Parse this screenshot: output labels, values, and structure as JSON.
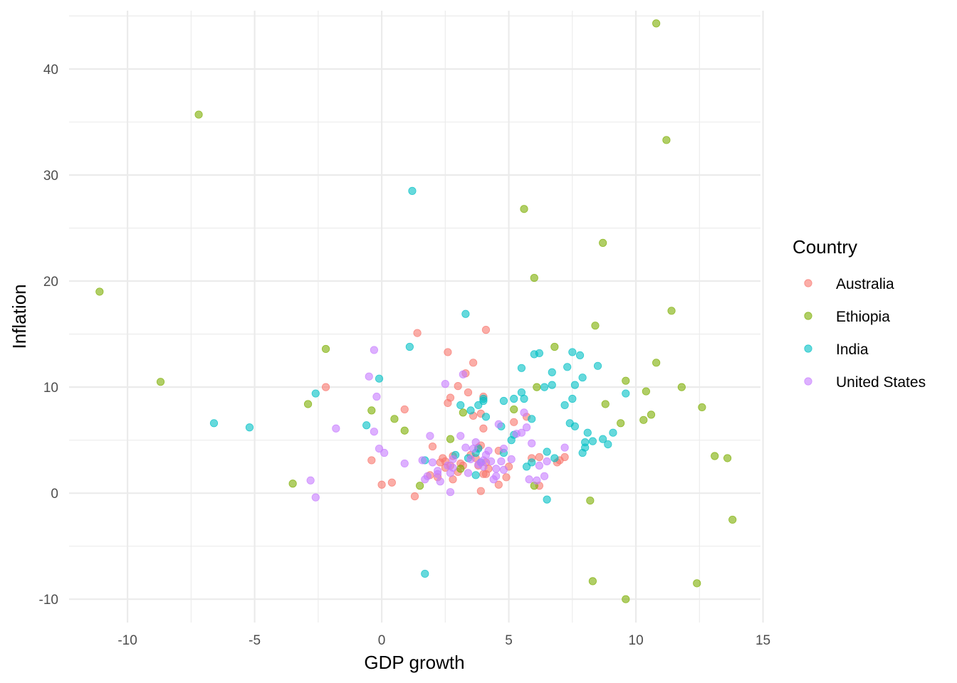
{
  "chart_data": {
    "type": "scatter",
    "title": "",
    "xlabel": "GDP growth",
    "ylabel": "Inflation",
    "xlim": [
      -12.3,
      14.9
    ],
    "ylim": [
      -12.2,
      45.5
    ],
    "xticks": [
      -10,
      -5,
      0,
      5,
      10,
      15
    ],
    "yticks": [
      -10,
      0,
      10,
      20,
      30,
      40
    ],
    "grid": true,
    "legend": {
      "title": "Country",
      "placement": "right"
    },
    "series": [
      {
        "name": "Australia",
        "color": "#F8766D",
        "points": [
          [
            -2.2,
            10.0
          ],
          [
            -0.4,
            3.1
          ],
          [
            0.0,
            0.8
          ],
          [
            0.4,
            1.0
          ],
          [
            0.9,
            7.9
          ],
          [
            1.3,
            -0.3
          ],
          [
            1.4,
            15.1
          ],
          [
            1.9,
            1.7
          ],
          [
            2.0,
            4.4
          ],
          [
            2.2,
            1.5
          ],
          [
            2.3,
            2.9
          ],
          [
            2.4,
            3.3
          ],
          [
            2.5,
            2.4
          ],
          [
            2.6,
            8.5
          ],
          [
            2.6,
            13.3
          ],
          [
            2.7,
            9.0
          ],
          [
            2.7,
            2.6
          ],
          [
            2.8,
            1.3
          ],
          [
            2.8,
            3.5
          ],
          [
            3.0,
            10.1
          ],
          [
            3.0,
            2.0
          ],
          [
            3.2,
            2.6
          ],
          [
            3.3,
            11.3
          ],
          [
            3.4,
            9.5
          ],
          [
            3.5,
            3.6
          ],
          [
            3.6,
            12.3
          ],
          [
            3.6,
            7.3
          ],
          [
            3.7,
            3.3
          ],
          [
            3.8,
            2.6
          ],
          [
            3.8,
            4.3
          ],
          [
            3.9,
            7.5
          ],
          [
            3.9,
            4.5
          ],
          [
            3.9,
            0.2
          ],
          [
            4.0,
            6.1
          ],
          [
            4.0,
            9.1
          ],
          [
            4.0,
            1.8
          ],
          [
            4.1,
            15.4
          ],
          [
            4.1,
            1.8
          ],
          [
            4.1,
            2.9
          ],
          [
            4.2,
            2.3
          ],
          [
            4.6,
            4.0
          ],
          [
            4.6,
            0.8
          ],
          [
            4.9,
            1.5
          ],
          [
            5.0,
            2.5
          ],
          [
            5.2,
            6.7
          ],
          [
            5.7,
            7.2
          ],
          [
            5.9,
            3.3
          ],
          [
            6.2,
            3.4
          ],
          [
            6.2,
            0.7
          ],
          [
            6.9,
            2.9
          ],
          [
            7.2,
            3.4
          ],
          [
            7.0,
            3.1
          ],
          [
            2.5,
            3.0
          ],
          [
            3.1,
            2.8
          ]
        ]
      },
      {
        "name": "Ethiopia",
        "color": "#7CAE00",
        "points": [
          [
            -11.1,
            19.0
          ],
          [
            -8.7,
            10.5
          ],
          [
            -7.2,
            35.7
          ],
          [
            -3.5,
            0.9
          ],
          [
            -2.9,
            8.4
          ],
          [
            -2.2,
            13.6
          ],
          [
            -0.4,
            7.8
          ],
          [
            0.5,
            7.0
          ],
          [
            0.9,
            5.9
          ],
          [
            1.5,
            0.7
          ],
          [
            2.7,
            5.1
          ],
          [
            3.1,
            2.3
          ],
          [
            3.2,
            7.6
          ],
          [
            5.2,
            7.9
          ],
          [
            5.6,
            26.8
          ],
          [
            6.0,
            20.3
          ],
          [
            6.0,
            0.7
          ],
          [
            6.1,
            10.0
          ],
          [
            6.8,
            13.8
          ],
          [
            8.2,
            -0.7
          ],
          [
            8.3,
            -8.3
          ],
          [
            8.4,
            15.8
          ],
          [
            8.7,
            23.6
          ],
          [
            8.8,
            8.4
          ],
          [
            9.4,
            6.6
          ],
          [
            9.6,
            10.6
          ],
          [
            9.6,
            -10.0
          ],
          [
            10.3,
            6.9
          ],
          [
            10.4,
            9.6
          ],
          [
            10.6,
            7.4
          ],
          [
            10.8,
            12.3
          ],
          [
            10.8,
            44.3
          ],
          [
            11.2,
            33.3
          ],
          [
            11.4,
            17.2
          ],
          [
            11.8,
            10.0
          ],
          [
            12.4,
            -8.5
          ],
          [
            12.6,
            8.1
          ],
          [
            13.1,
            3.5
          ],
          [
            13.6,
            3.3
          ],
          [
            13.8,
            -2.5
          ]
        ]
      },
      {
        "name": "India",
        "color": "#00BFC4",
        "points": [
          [
            -6.6,
            6.6
          ],
          [
            -5.2,
            6.2
          ],
          [
            -2.6,
            9.4
          ],
          [
            -0.6,
            6.4
          ],
          [
            -0.1,
            10.8
          ],
          [
            1.1,
            13.8
          ],
          [
            1.2,
            28.5
          ],
          [
            1.7,
            3.1
          ],
          [
            1.7,
            -7.6
          ],
          [
            2.9,
            3.6
          ],
          [
            3.1,
            8.3
          ],
          [
            3.3,
            16.9
          ],
          [
            3.4,
            3.3
          ],
          [
            3.5,
            7.8
          ],
          [
            3.7,
            1.7
          ],
          [
            3.7,
            3.8
          ],
          [
            3.8,
            8.3
          ],
          [
            3.8,
            4.2
          ],
          [
            3.9,
            2.9
          ],
          [
            4.0,
            8.9
          ],
          [
            4.0,
            8.7
          ],
          [
            4.1,
            7.2
          ],
          [
            4.7,
            6.3
          ],
          [
            4.8,
            8.7
          ],
          [
            4.8,
            3.8
          ],
          [
            5.1,
            5.0
          ],
          [
            5.2,
            5.5
          ],
          [
            5.2,
            8.9
          ],
          [
            5.5,
            11.8
          ],
          [
            5.5,
            9.5
          ],
          [
            5.6,
            8.9
          ],
          [
            5.7,
            2.5
          ],
          [
            5.9,
            7.0
          ],
          [
            5.9,
            2.9
          ],
          [
            6.0,
            13.1
          ],
          [
            6.2,
            13.2
          ],
          [
            6.4,
            10.0
          ],
          [
            6.5,
            3.9
          ],
          [
            6.5,
            -0.6
          ],
          [
            6.7,
            10.2
          ],
          [
            6.7,
            11.4
          ],
          [
            6.8,
            3.3
          ],
          [
            7.2,
            8.3
          ],
          [
            7.3,
            11.9
          ],
          [
            7.4,
            6.6
          ],
          [
            7.5,
            13.3
          ],
          [
            7.5,
            8.9
          ],
          [
            7.6,
            10.2
          ],
          [
            7.6,
            6.3
          ],
          [
            7.8,
            13.0
          ],
          [
            7.9,
            10.9
          ],
          [
            7.9,
            3.8
          ],
          [
            8.0,
            4.3
          ],
          [
            8.0,
            4.8
          ],
          [
            8.1,
            5.7
          ],
          [
            8.3,
            4.9
          ],
          [
            8.5,
            12.0
          ],
          [
            8.7,
            5.1
          ],
          [
            8.9,
            4.6
          ],
          [
            9.1,
            5.7
          ],
          [
            9.6,
            9.4
          ]
        ]
      },
      {
        "name": "United States",
        "color": "#C77CFF",
        "points": [
          [
            -2.8,
            1.2
          ],
          [
            -2.6,
            -0.4
          ],
          [
            -1.8,
            6.1
          ],
          [
            -0.5,
            11.0
          ],
          [
            -0.3,
            5.8
          ],
          [
            -0.3,
            13.5
          ],
          [
            -0.2,
            9.1
          ],
          [
            -0.1,
            4.2
          ],
          [
            0.1,
            3.8
          ],
          [
            0.9,
            2.8
          ],
          [
            1.6,
            3.1
          ],
          [
            1.7,
            1.3
          ],
          [
            1.8,
            1.6
          ],
          [
            1.9,
            5.4
          ],
          [
            2.0,
            2.9
          ],
          [
            2.2,
            2.1
          ],
          [
            2.2,
            1.8
          ],
          [
            2.3,
            1.1
          ],
          [
            2.5,
            10.3
          ],
          [
            2.6,
            2.6
          ],
          [
            2.7,
            0.1
          ],
          [
            2.7,
            1.9
          ],
          [
            2.8,
            3.2
          ],
          [
            2.8,
            2.4
          ],
          [
            3.1,
            5.4
          ],
          [
            3.2,
            11.2
          ],
          [
            3.3,
            4.3
          ],
          [
            3.4,
            1.9
          ],
          [
            3.5,
            3.2
          ],
          [
            3.6,
            4.2
          ],
          [
            3.7,
            4.8
          ],
          [
            3.8,
            2.7
          ],
          [
            3.9,
            2.9
          ],
          [
            4.0,
            3.1
          ],
          [
            4.0,
            2.5
          ],
          [
            4.1,
            3.6
          ],
          [
            4.2,
            4.0
          ],
          [
            4.3,
            3.0
          ],
          [
            4.4,
            1.3
          ],
          [
            4.5,
            2.3
          ],
          [
            4.5,
            1.6
          ],
          [
            4.6,
            6.5
          ],
          [
            4.7,
            3.0
          ],
          [
            4.8,
            4.2
          ],
          [
            4.8,
            2.2
          ],
          [
            5.1,
            3.2
          ],
          [
            5.3,
            5.6
          ],
          [
            5.5,
            5.7
          ],
          [
            5.6,
            7.6
          ],
          [
            5.7,
            6.2
          ],
          [
            5.8,
            1.3
          ],
          [
            5.9,
            4.7
          ],
          [
            6.1,
            1.2
          ],
          [
            6.2,
            2.6
          ],
          [
            6.4,
            1.6
          ],
          [
            6.5,
            3.0
          ],
          [
            7.2,
            4.3
          ]
        ]
      }
    ]
  }
}
